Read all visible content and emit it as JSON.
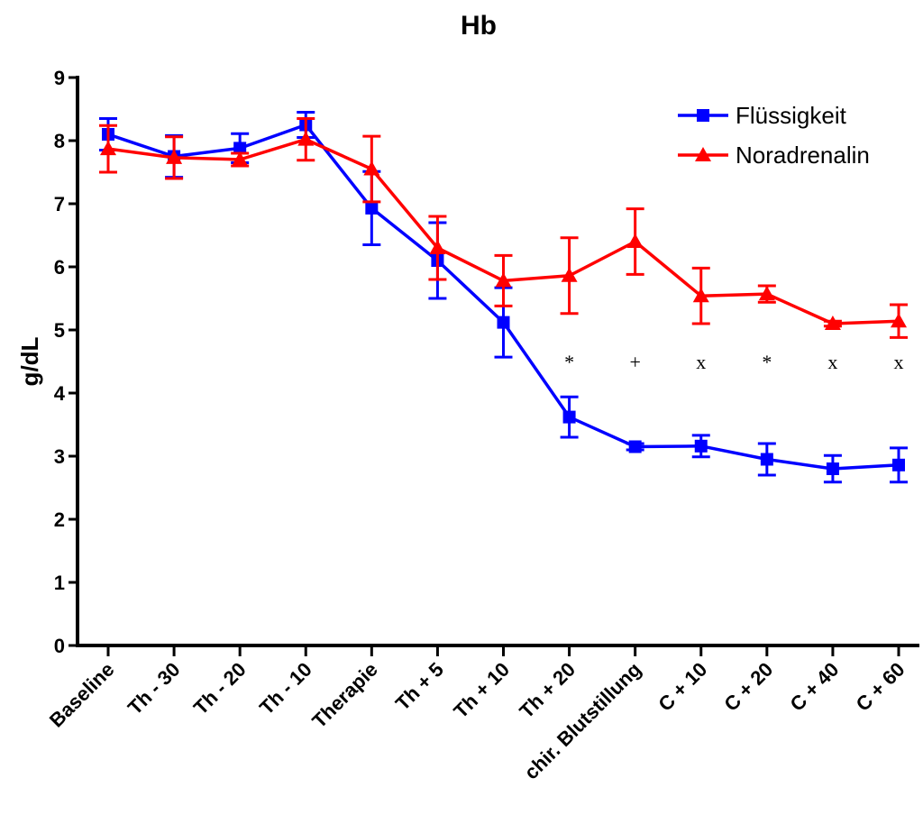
{
  "chart_data": {
    "type": "line",
    "title": "Hb",
    "ylabel": "g/dL",
    "xlabel": "",
    "ylim": [
      0,
      9
    ],
    "yticks": [
      0,
      1,
      2,
      3,
      4,
      5,
      6,
      7,
      8,
      9
    ],
    "categories": [
      "Baseline",
      "Th - 30",
      "Th - 20",
      "Th - 10",
      "Therapie",
      "Th + 5",
      "Th + 10",
      "Th + 20",
      "chir. Blutstillung",
      "C + 10",
      "C + 20",
      "C + 40",
      "C + 60"
    ],
    "grid": false,
    "legend_position": "top-right",
    "series": [
      {
        "name": "Flüssigkeit",
        "color": "#0000ff",
        "marker": "square",
        "values": [
          8.1,
          7.75,
          7.88,
          8.25,
          6.93,
          6.1,
          5.12,
          3.62,
          3.15,
          3.16,
          2.95,
          2.8,
          2.86
        ],
        "errors": [
          0.25,
          0.33,
          0.23,
          0.2,
          0.58,
          0.6,
          0.55,
          0.32,
          0.05,
          0.17,
          0.25,
          0.21,
          0.27
        ]
      },
      {
        "name": "Noradrenalin",
        "color": "#ff0000",
        "marker": "triangle",
        "values": [
          7.87,
          7.73,
          7.7,
          8.02,
          7.55,
          6.3,
          5.78,
          5.86,
          6.4,
          5.54,
          5.57,
          5.1,
          5.14
        ],
        "errors": [
          0.37,
          0.33,
          0.1,
          0.33,
          0.52,
          0.5,
          0.4,
          0.6,
          0.52,
          0.44,
          0.13,
          0.04,
          0.26
        ]
      }
    ],
    "annotations": [
      {
        "category": "Th + 20",
        "text": "*",
        "y": 4.5
      },
      {
        "category": "chir. Blutstillung",
        "text": "+",
        "y": 4.5
      },
      {
        "category": "C + 10",
        "text": "x",
        "y": 4.5
      },
      {
        "category": "C + 20",
        "text": "*",
        "y": 4.5
      },
      {
        "category": "C + 40",
        "text": "x",
        "y": 4.5
      },
      {
        "category": "C + 60",
        "text": "x",
        "y": 4.5
      }
    ]
  }
}
